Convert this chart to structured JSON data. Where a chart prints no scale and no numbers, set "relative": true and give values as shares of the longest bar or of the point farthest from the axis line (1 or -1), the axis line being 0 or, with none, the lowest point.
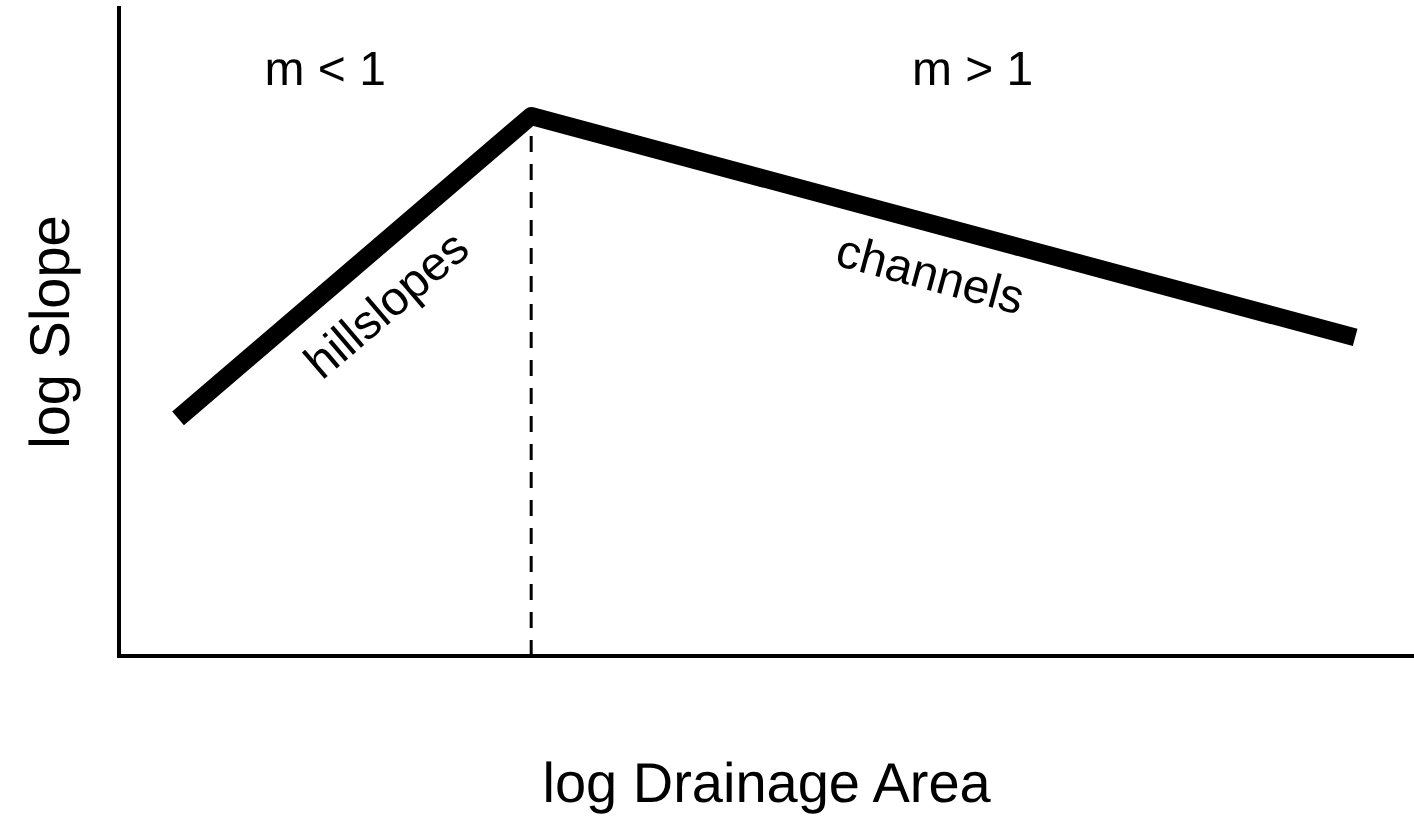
{
  "chart_data": {
    "type": "line",
    "relative": true,
    "xlabel": "log Drainage Area",
    "ylabel": "log Slope",
    "categories": [
      null,
      null,
      null,
      null,
      null,
      null,
      null,
      null,
      null,
      null,
      null
    ],
    "series": [
      {
        "color": "#000000",
        "values": [
          0.44,
          null,
          null,
          1,
          null,
          null,
          null,
          null,
          null,
          null,
          0.59
        ]
      }
    ],
    "annotations": [
      "m < 1",
      "m > 1",
      "hillslopes",
      "channels"
    ],
    "grid": false,
    "legend": false,
    "marker": "none",
    "line_style": "solid"
  }
}
